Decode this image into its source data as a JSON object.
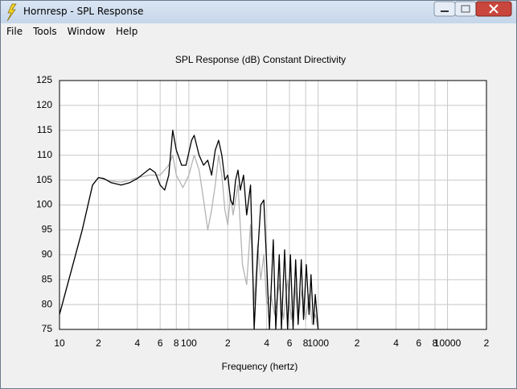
{
  "window": {
    "title": "Hornresp - SPL Response",
    "menu": [
      "File",
      "Tools",
      "Window",
      "Help"
    ]
  },
  "chart_data": {
    "type": "line",
    "title": "SPL Response (dB)   Constant Directivity",
    "x_label": "Frequency (hertz)",
    "xscale": "log",
    "grid": true,
    "xlim": [
      10,
      20000
    ],
    "ylim": [
      75,
      125
    ],
    "xticks": [
      10,
      {
        "value": 20,
        "label": "2"
      },
      {
        "value": 40,
        "label": "4"
      },
      {
        "value": 60,
        "label": "6"
      },
      {
        "value": 80,
        "label": "8"
      },
      100,
      {
        "value": 200,
        "label": "2"
      },
      {
        "value": 400,
        "label": "4"
      },
      {
        "value": 600,
        "label": "6"
      },
      {
        "value": 800,
        "label": "8"
      },
      1000,
      {
        "value": 2000,
        "label": "2"
      },
      {
        "value": 4000,
        "label": "4"
      },
      {
        "value": 6000,
        "label": "6"
      },
      {
        "value": 8000,
        "label": "8"
      },
      10000,
      {
        "value": 20000,
        "label": "2"
      }
    ],
    "yticks": [
      75,
      80,
      85,
      90,
      95,
      100,
      105,
      110,
      115,
      120,
      125
    ],
    "series": [
      {
        "color": "#b4b4b4",
        "x": [
          10,
          15,
          18,
          20,
          22,
          25,
          30,
          35,
          40,
          50,
          60,
          70,
          75,
          80,
          90,
          100,
          110,
          120,
          130,
          140,
          150,
          160,
          170,
          180,
          190,
          200,
          210,
          220,
          240,
          260,
          280,
          300,
          320,
          340,
          360,
          380,
          400,
          430,
          460,
          500,
          540,
          580,
          620,
          660,
          700,
          750,
          800,
          850,
          900,
          950,
          1000
        ],
        "values": [
          78,
          95,
          104,
          105.5,
          105.2,
          104.8,
          104.6,
          105,
          105.5,
          106,
          106,
          108,
          110,
          106,
          103.5,
          106,
          110,
          107,
          101,
          95,
          99,
          104,
          110,
          106,
          99,
          96,
          102,
          98,
          104,
          88,
          84,
          96,
          80,
          92,
          85,
          90,
          80,
          82,
          78,
          84,
          77,
          85,
          77,
          84,
          77,
          83,
          77,
          82,
          76,
          78,
          75
        ]
      },
      {
        "color": "#000000",
        "x": [
          10,
          15,
          18,
          20,
          22,
          25,
          30,
          35,
          40,
          50,
          55,
          60,
          65,
          70,
          75,
          80,
          88,
          95,
          105,
          110,
          120,
          130,
          140,
          150,
          160,
          170,
          180,
          190,
          200,
          210,
          220,
          230,
          240,
          250,
          265,
          280,
          300,
          310,
          320,
          340,
          360,
          380,
          400,
          420,
          450,
          470,
          500,
          520,
          550,
          580,
          610,
          640,
          670,
          700,
          740,
          770,
          810,
          850,
          880,
          920,
          950,
          1000
        ],
        "values": [
          78,
          95,
          104,
          105.5,
          105.3,
          104.5,
          104,
          104.5,
          105.3,
          107.3,
          106.5,
          104,
          103,
          106,
          115,
          111,
          108,
          108,
          113,
          114,
          110,
          108,
          109,
          106,
          111,
          113,
          110,
          105,
          106,
          101,
          100,
          105,
          107,
          103,
          106,
          98,
          104,
          90,
          75,
          90,
          100,
          101,
          88,
          75,
          93,
          75,
          90,
          75,
          91,
          75,
          90,
          75,
          89,
          76,
          89,
          77,
          88,
          78,
          86,
          76,
          82,
          75
        ]
      }
    ]
  }
}
